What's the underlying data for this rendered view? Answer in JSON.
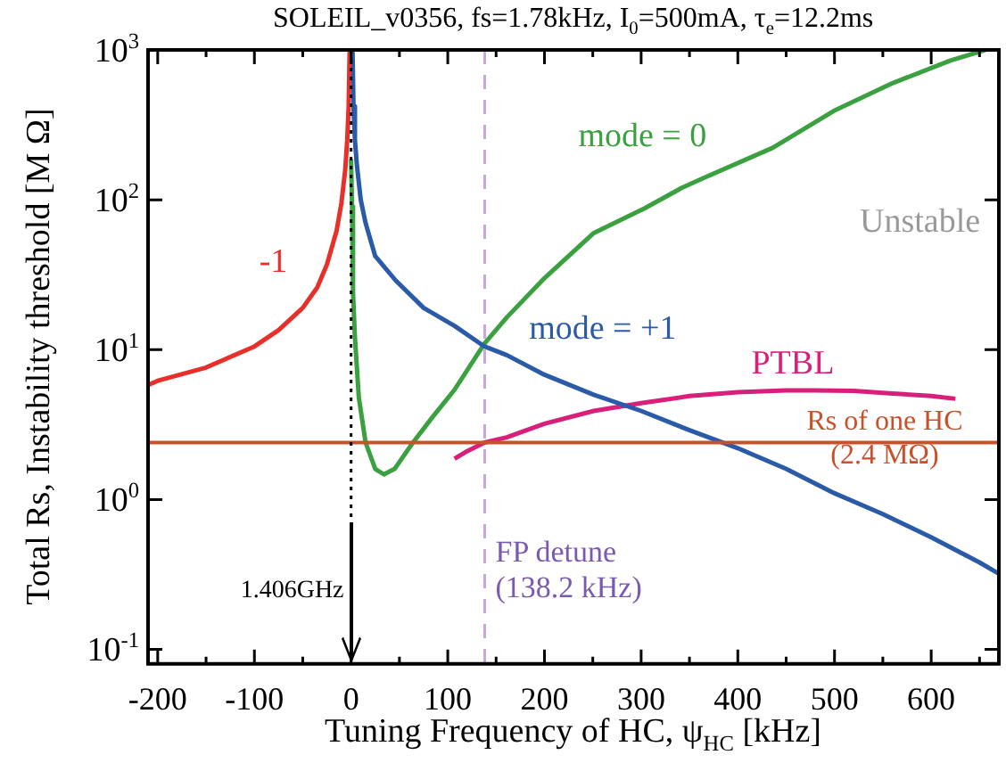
{
  "chart_data": {
    "type": "line",
    "title": "SOLEIL_v0356, fs=1.78kHz, I$_{0}$=500mA, τ$_{e}$=12.2ms",
    "xlabel": "Tuning Frequency of HC, ψ$_{HC}$ [kHz]",
    "ylabel": "Total Rs, Instability threshold [M Ω]",
    "log": "y",
    "xlim": [
      -210,
      670
    ],
    "ylim": [
      0.08,
      1000
    ],
    "xticks": [
      -200,
      {
        "value": -150,
        "label": null
      },
      -100,
      {
        "value": -50,
        "label": null
      },
      0,
      {
        "value": 50,
        "label": null
      },
      100,
      {
        "value": 150,
        "label": null
      },
      200,
      {
        "value": 250,
        "label": null
      },
      300,
      {
        "value": 350,
        "label": null
      },
      400,
      {
        "value": 450,
        "label": null
      },
      500,
      {
        "value": 550,
        "label": null
      },
      600,
      {
        "value": 650,
        "label": null
      }
    ],
    "yticks": [
      {
        "value": 0.1,
        "label": "10$^{-1}$"
      },
      {
        "value": 1,
        "label": "10$^{0}$"
      },
      {
        "value": 10,
        "label": "10$^{1}$"
      },
      {
        "value": 100,
        "label": "10$^{2}$"
      },
      {
        "value": 1000,
        "label": "10$^{3}$"
      }
    ],
    "series": [
      {
        "name": "-1",
        "color": "#e8302a",
        "x": [
          -210,
          -200,
          -150,
          -100,
          -75,
          -50,
          -35,
          -25,
          -15,
          -10,
          -6,
          -4,
          -2.5,
          -1.5
        ],
        "values": [
          5.8,
          6.2,
          7.6,
          10.5,
          13.5,
          19,
          26,
          37,
          62,
          95,
          160,
          250,
          420,
          1000
        ]
      },
      {
        "name": "mode = +1",
        "color": "#2a5aa8",
        "x": [
          1.5,
          2.5,
          4,
          6,
          10,
          15,
          25,
          46,
          75,
          107,
          138,
          161,
          200,
          251,
          300,
          350,
          384,
          400,
          450,
          500,
          550,
          600,
          650,
          670
        ],
        "values": [
          1000,
          420,
          250,
          170,
          100,
          70,
          42,
          29,
          19,
          14.4,
          10.5,
          9.2,
          6.8,
          5,
          3.9,
          2.9,
          2.4,
          2.2,
          1.6,
          1.1,
          0.8,
          0.56,
          0.38,
          0.32
        ]
      },
      {
        "name": "mode = 0",
        "color": "#3aa040",
        "x": [
          0,
          1,
          2,
          4,
          8,
          15,
          25,
          34,
          45,
          64,
          85,
          107,
          138,
          161,
          200,
          251,
          304,
          342,
          365,
          436,
          501,
          560,
          620,
          656
        ],
        "values": [
          186,
          90,
          24,
          12,
          4.8,
          2.4,
          1.6,
          1.47,
          1.6,
          2.4,
          3.6,
          5.4,
          11,
          16.4,
          30,
          60,
          88,
          120,
          140,
          222,
          397,
          600,
          850,
          1000
        ]
      },
      {
        "name": "PTBL",
        "color": "#d8207a",
        "x": [
          107,
          120,
          138,
          161,
          200,
          251,
          300,
          350,
          400,
          450,
          480,
          520,
          560,
          600,
          625
        ],
        "values": [
          1.87,
          2.1,
          2.4,
          2.6,
          3.2,
          3.9,
          4.4,
          4.9,
          5.2,
          5.35,
          5.35,
          5.3,
          5.1,
          4.9,
          4.7
        ]
      }
    ],
    "ref_lines": [
      {
        "axis": "y",
        "value": 2.4,
        "label": "Rs of one HC (2.4 MΩ)",
        "color": "#c8502a",
        "line_style": "solid"
      },
      {
        "axis": "x",
        "value": 138.2,
        "label": "FP detune (138.2 kHz)",
        "color": "#c8a8d8",
        "line_style": "dashed"
      },
      {
        "axis": "x",
        "value": 0,
        "label": "1.406GHz",
        "color": "#000000",
        "line_style": "dotted"
      }
    ],
    "annotations": [
      "Unstable"
    ]
  }
}
